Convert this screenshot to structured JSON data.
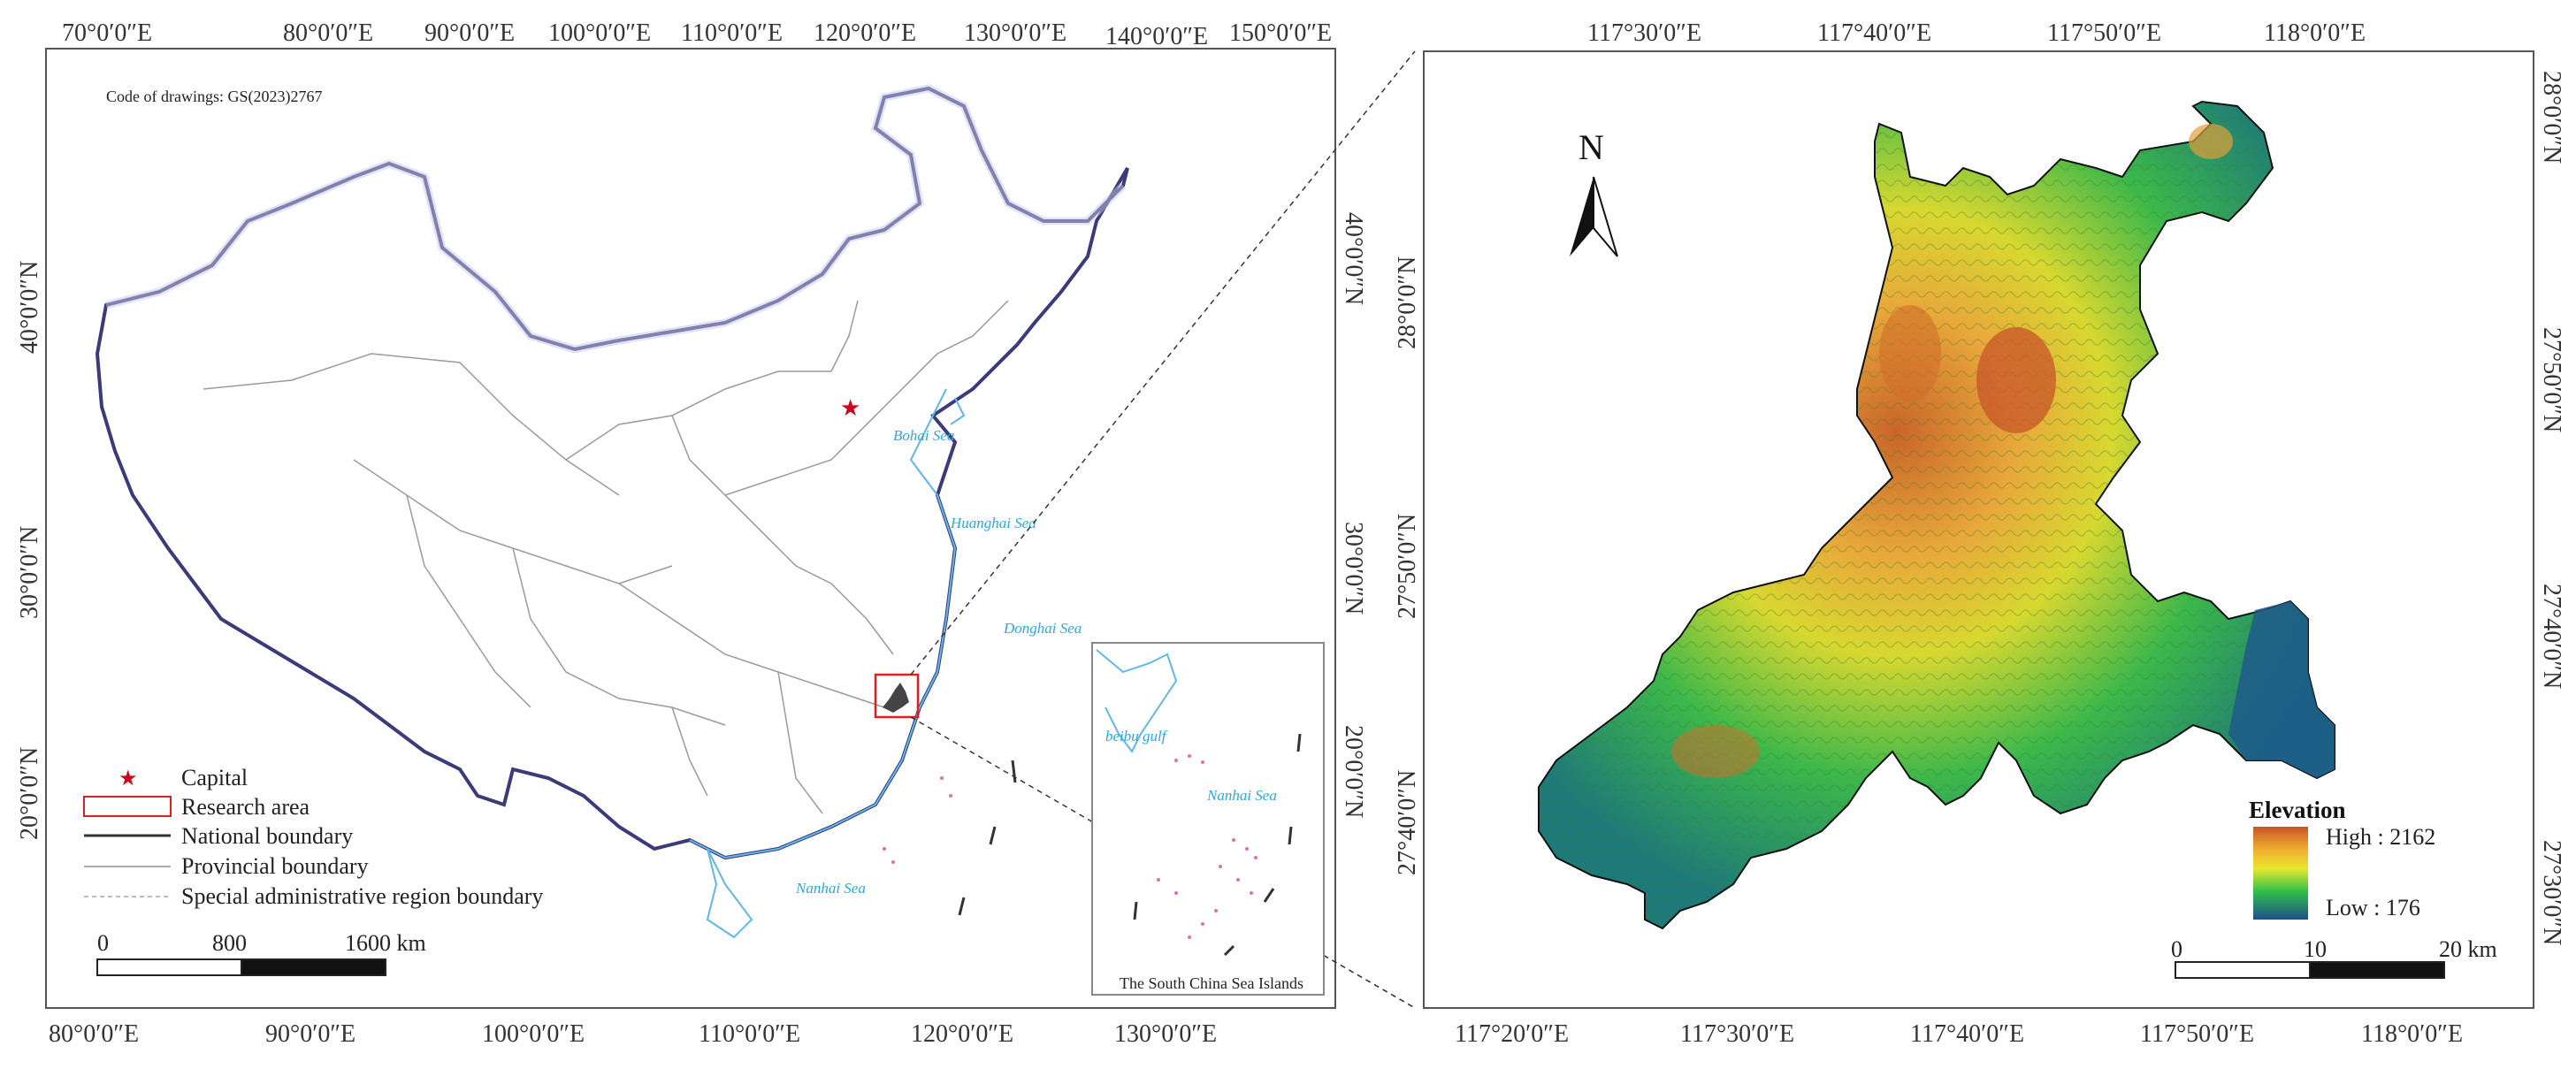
{
  "left_map": {
    "code": "Code of drawings: GS(2023)2767",
    "top_lon": [
      "70°0′0″E",
      "80°0′0″E",
      "90°0′0″E",
      "100°0′0″E",
      "110°0′0″E",
      "120°0′0″E",
      "130°0′0″E",
      "140°0′0″E",
      "150°0′0″E"
    ],
    "bottom_lon": [
      "80°0′0″E",
      "90°0′0″E",
      "100°0′0″E",
      "110°0′0″E",
      "120°0′0″E",
      "130°0′0″E"
    ],
    "left_lat": [
      "40°0′0″N",
      "30°0′0″N",
      "20°0′0″N"
    ],
    "right_lat": [
      "40°0′0″N",
      "30°0′0″N",
      "20°0′0″N"
    ],
    "seas": {
      "bohai": "Bohai Sea",
      "huanghai": "Huanghai Sea",
      "donghai": "Donghai Sea",
      "nanhai": "Nanhai Sea"
    },
    "inset": {
      "title": "The South China Sea Islands",
      "gulf": "beibu gulf",
      "sea": "Nanhai Sea"
    },
    "legend": {
      "capital": "Capital",
      "research": "Research area",
      "national": "National boundary",
      "provincial": "Provincial boundary",
      "special": "Special administrative region boundary"
    },
    "scale": {
      "t0": "0",
      "t1": "800",
      "t2": "1600 km"
    }
  },
  "right_map": {
    "top_lon": [
      "117°30′0″E",
      "117°40′0″E",
      "117°50′0″E",
      "118°0′0″E"
    ],
    "bottom_lon": [
      "117°20′0″E",
      "117°30′0″E",
      "117°40′0″E",
      "117°50′0″E",
      "118°0′0″E"
    ],
    "left_lat": [
      "28°0′0″N",
      "27°50′0″N",
      "27°40′0″N"
    ],
    "right_lat": [
      "28°0′0″N",
      "27°50′0″N",
      "27°40′0″N",
      "27°30′0″N"
    ],
    "north": "N",
    "legend": {
      "title": "Elevation",
      "high": "High : 2162",
      "low": "Low : 176"
    },
    "scale": {
      "t0": "0",
      "t1": "10",
      "t2": "20 km"
    },
    "colors": {
      "high": "#c8652a",
      "mid_high": "#f0c030",
      "mid": "#e8e830",
      "mid_low": "#2fbf4a",
      "low": "#1c4f8a"
    }
  }
}
